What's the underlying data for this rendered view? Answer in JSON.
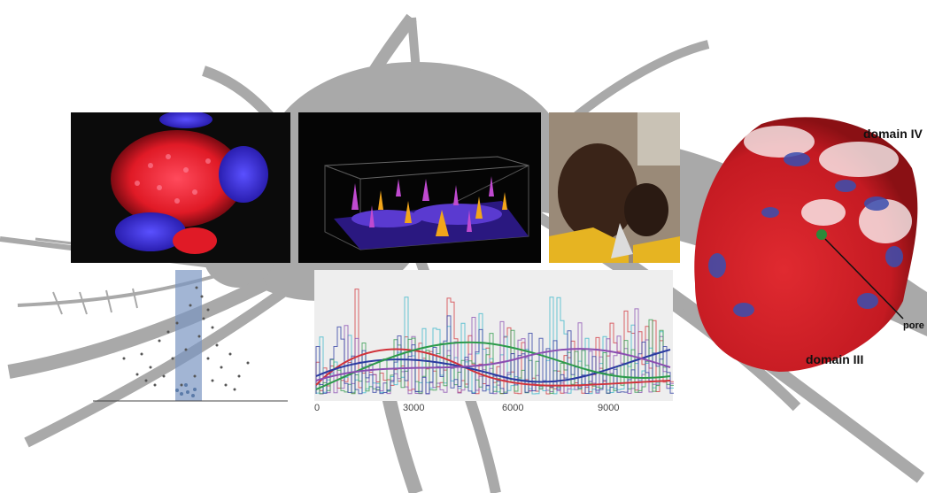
{
  "colors": {
    "silhouette": "#a9a9a9",
    "panel_dark": "#0b0b0b",
    "cell_red": "#e01a26",
    "nucleus_blue": "#3a2ee0",
    "protein_red": "#d31f26",
    "protein_blue": "#3a4fb0",
    "plot_bg": "#eeeeee",
    "highlight_band": "#7a96c2"
  },
  "icons": {
    "mosquito": "mosquito-silhouette-icon"
  },
  "line_chart": {
    "x_ticks": [
      "0",
      "3000",
      "6000",
      "9000"
    ]
  },
  "protein": {
    "labels": {
      "domain_iv": "domain IV",
      "pore": "pore",
      "domain_iii": "domain III"
    }
  }
}
